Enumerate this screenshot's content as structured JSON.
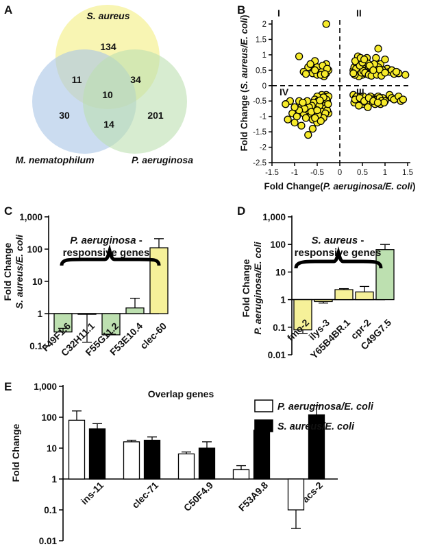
{
  "figure": {
    "panel_labels": {
      "A": "A",
      "B": "B",
      "C": "C",
      "D": "D",
      "E": "E"
    },
    "colors": {
      "yellow": "#f6f199",
      "green": "#bde0b0",
      "blue": "#a9c4e6",
      "scatter_fill": "#f7eb2a",
      "black": "#000000",
      "white": "#ffffff"
    }
  },
  "chart_data": [
    {
      "panel": "A",
      "type": "venn",
      "sets": [
        "S. aureus",
        "M. nematophilum",
        "P. aeruginosa"
      ],
      "regions": {
        "aureus_only": "134",
        "nemato_only": "30",
        "pseudo_only": "201",
        "aureus_nemato": "11",
        "aureus_pseudo": "34",
        "nemato_pseudo": "14",
        "all_three": "10"
      }
    },
    {
      "panel": "B",
      "type": "scatter",
      "xlabel_prefix": "Fold Change(",
      "xlabel_italic": "P. aeruginosa/E. coli",
      "xlabel_suffix": ")",
      "ylabel_prefix": "Fold Change (",
      "ylabel_italic": "S. aureus/E. coli",
      "ylabel_suffix": ")",
      "xlim": [
        -1.5,
        1.5
      ],
      "ylim": [
        -2.5,
        2
      ],
      "xticks": [
        "-1.5",
        "-1",
        "-0.5",
        "0",
        "0.5",
        "1",
        "1.5"
      ],
      "yticks": [
        "-2.5",
        "-2",
        "-1.5",
        "-1",
        "-0.5",
        "0",
        "0.5",
        "1",
        "1.5",
        "2"
      ],
      "quadrants": {
        "I": "I",
        "II": "II",
        "III": "III",
        "IV": "IV"
      },
      "points": [
        [
          -0.3,
          2.0
        ],
        [
          -0.9,
          0.95
        ],
        [
          -0.55,
          0.8
        ],
        [
          -0.3,
          0.7
        ],
        [
          -0.7,
          0.6
        ],
        [
          -0.6,
          0.4
        ],
        [
          -0.5,
          0.35
        ],
        [
          -0.45,
          0.55
        ],
        [
          -0.4,
          0.45
        ],
        [
          -0.35,
          0.3
        ],
        [
          -0.3,
          0.4
        ],
        [
          -0.25,
          0.5
        ],
        [
          -0.8,
          0.45
        ],
        [
          -0.65,
          0.7
        ],
        [
          -0.5,
          0.6
        ],
        [
          -0.38,
          0.65
        ],
        [
          -0.42,
          0.35
        ],
        [
          -0.28,
          0.55
        ],
        [
          -0.33,
          0.38
        ],
        [
          -0.55,
          0.5
        ],
        [
          -0.75,
          0.38
        ],
        [
          0.4,
          0.95
        ],
        [
          0.6,
          0.9
        ],
        [
          0.8,
          0.9
        ],
        [
          0.85,
          1.2
        ],
        [
          0.9,
          0.7
        ],
        [
          1.0,
          0.85
        ],
        [
          1.05,
          0.55
        ],
        [
          1.3,
          0.4
        ],
        [
          1.45,
          0.35
        ],
        [
          0.3,
          0.5
        ],
        [
          0.35,
          0.45
        ],
        [
          0.4,
          0.4
        ],
        [
          0.45,
          0.55
        ],
        [
          0.5,
          0.35
        ],
        [
          0.55,
          0.6
        ],
        [
          0.6,
          0.5
        ],
        [
          0.65,
          0.45
        ],
        [
          0.7,
          0.55
        ],
        [
          0.75,
          0.4
        ],
        [
          0.8,
          0.5
        ],
        [
          0.85,
          0.6
        ],
        [
          0.9,
          0.4
        ],
        [
          0.95,
          0.5
        ],
        [
          1.1,
          0.45
        ],
        [
          1.15,
          0.5
        ],
        [
          1.2,
          0.38
        ],
        [
          0.32,
          0.6
        ],
        [
          0.38,
          0.7
        ],
        [
          0.42,
          0.3
        ],
        [
          0.48,
          0.42
        ],
        [
          0.52,
          0.48
        ],
        [
          0.58,
          0.38
        ],
        [
          0.62,
          0.72
        ],
        [
          0.68,
          0.4
        ],
        [
          0.72,
          0.62
        ],
        [
          0.78,
          0.45
        ],
        [
          0.33,
          0.35
        ],
        [
          0.36,
          0.55
        ],
        [
          0.44,
          0.65
        ],
        [
          0.5,
          0.75
        ],
        [
          0.56,
          0.42
        ],
        [
          0.64,
          0.35
        ],
        [
          0.7,
          0.32
        ],
        [
          0.76,
          0.7
        ],
        [
          0.82,
          0.35
        ],
        [
          0.88,
          0.52
        ],
        [
          0.92,
          0.32
        ],
        [
          1.0,
          0.42
        ],
        [
          1.25,
          0.45
        ],
        [
          0.3,
          0.4
        ],
        [
          0.34,
          0.8
        ],
        [
          0.46,
          0.9
        ],
        [
          0.54,
          0.85
        ],
        [
          0.66,
          0.65
        ],
        [
          0.74,
          0.5
        ],
        [
          -1.1,
          -0.5
        ],
        [
          -0.9,
          -0.5
        ],
        [
          -0.85,
          -0.7
        ],
        [
          -0.8,
          -0.9
        ],
        [
          -0.75,
          -0.6
        ],
        [
          -0.7,
          -0.8
        ],
        [
          -0.65,
          -1.0
        ],
        [
          -0.6,
          -1.1
        ],
        [
          -0.55,
          -0.9
        ],
        [
          -0.5,
          -0.7
        ],
        [
          -0.45,
          -0.8
        ],
        [
          -0.4,
          -0.6
        ],
        [
          -0.35,
          -0.5
        ],
        [
          -0.3,
          -0.7
        ],
        [
          -0.25,
          -0.9
        ],
        [
          -0.5,
          -1.2
        ],
        [
          -0.6,
          -1.4
        ],
        [
          -0.7,
          -1.6
        ],
        [
          -0.85,
          -1.3
        ],
        [
          -1.0,
          -1.2
        ],
        [
          -1.05,
          -0.9
        ],
        [
          -1.15,
          -1.1
        ],
        [
          -0.95,
          -1.0
        ],
        [
          -0.4,
          -1.0
        ],
        [
          -0.3,
          -0.3
        ],
        [
          -0.35,
          -0.35
        ],
        [
          -0.4,
          -0.3
        ],
        [
          -0.45,
          -0.4
        ],
        [
          -0.5,
          -0.35
        ],
        [
          -0.55,
          -0.45
        ],
        [
          -0.3,
          -0.4
        ],
        [
          -0.25,
          -0.35
        ],
        [
          -0.28,
          -0.5
        ],
        [
          -0.33,
          -0.55
        ],
        [
          -0.38,
          -0.45
        ],
        [
          -0.42,
          -0.55
        ],
        [
          -0.48,
          -0.5
        ],
        [
          -0.52,
          -0.6
        ],
        [
          -0.58,
          -0.55
        ],
        [
          -0.62,
          -0.65
        ],
        [
          -0.68,
          -0.7
        ],
        [
          -0.72,
          -0.5
        ],
        [
          -0.78,
          -0.75
        ],
        [
          -0.82,
          -0.55
        ],
        [
          -0.3,
          -0.6
        ],
        [
          -0.35,
          -0.75
        ],
        [
          -0.4,
          -0.85
        ],
        [
          -0.45,
          -0.65
        ],
        [
          -0.28,
          -0.8
        ],
        [
          -0.32,
          -0.9
        ],
        [
          -0.36,
          -1.05
        ],
        [
          -0.42,
          -1.15
        ],
        [
          -0.48,
          -0.95
        ],
        [
          -0.55,
          -1.05
        ],
        [
          -0.63,
          -0.85
        ],
        [
          -0.75,
          -1.05
        ],
        [
          -0.9,
          -0.8
        ],
        [
          -1.0,
          -0.7
        ],
        [
          -1.2,
          -0.6
        ],
        [
          -0.3,
          -0.45
        ],
        [
          -0.36,
          -0.38
        ],
        [
          -0.44,
          -0.48
        ],
        [
          -0.26,
          -0.6
        ],
        [
          -0.5,
          -0.8
        ],
        [
          0.3,
          -0.3
        ],
        [
          0.35,
          -0.4
        ],
        [
          0.4,
          -0.5
        ],
        [
          0.45,
          -0.35
        ],
        [
          0.5,
          -0.6
        ],
        [
          0.55,
          -0.4
        ],
        [
          0.6,
          -0.5
        ],
        [
          0.65,
          -0.45
        ],
        [
          0.7,
          -0.55
        ],
        [
          0.75,
          -0.4
        ],
        [
          0.8,
          -0.5
        ],
        [
          0.85,
          -0.35
        ],
        [
          0.9,
          -0.6
        ],
        [
          0.95,
          -0.4
        ],
        [
          1.0,
          -0.5
        ],
        [
          1.1,
          -0.3
        ],
        [
          1.15,
          -0.4
        ],
        [
          1.2,
          -0.45
        ],
        [
          1.3,
          -0.35
        ],
        [
          1.35,
          -0.5
        ],
        [
          1.4,
          -0.45
        ],
        [
          0.32,
          -0.55
        ],
        [
          0.38,
          -0.35
        ],
        [
          0.42,
          -0.65
        ],
        [
          0.48,
          -0.45
        ],
        [
          0.52,
          -0.35
        ],
        [
          0.58,
          -0.55
        ],
        [
          0.62,
          -0.7
        ],
        [
          0.68,
          -0.35
        ],
        [
          0.72,
          -0.45
        ],
        [
          0.78,
          -0.6
        ],
        [
          0.82,
          -0.45
        ],
        [
          0.88,
          -0.4
        ],
        [
          0.92,
          -0.5
        ],
        [
          0.98,
          -0.55
        ],
        [
          0.34,
          -0.45
        ],
        [
          0.44,
          -0.4
        ],
        [
          0.54,
          -0.5
        ],
        [
          0.64,
          -0.4
        ],
        [
          0.74,
          -0.5
        ],
        [
          0.84,
          -0.55
        ]
      ]
    },
    {
      "panel": "C",
      "type": "bar",
      "scale": "log",
      "ylim": [
        0.1,
        1000
      ],
      "yticks": [
        "0.1",
        "1",
        "10",
        "100",
        "1,000"
      ],
      "ylabel_line1": "Fold Change",
      "ylabel_line2": "S. aureus/E. coli",
      "bracket_label_italic": "P. aeruginosa",
      "bracket_label_suffix": " -",
      "bracket_label_line2": "responsive genes",
      "categories": [
        "F49F1.6",
        "C32H11.1",
        "F55G11.2",
        "F53E10.4",
        "clec-60"
      ],
      "values": [
        0.27,
        0.95,
        0.22,
        1.5,
        110
      ],
      "errors": [
        0.35,
        0.13,
        0.23,
        3.0,
        210
      ],
      "bar_colors": [
        "green",
        "green",
        "green",
        "green",
        "yellow"
      ]
    },
    {
      "panel": "D",
      "type": "bar",
      "scale": "log",
      "ylim": [
        0.01,
        1000
      ],
      "yticks": [
        "0.01",
        "0.1",
        "1",
        "10",
        "100",
        "1,000"
      ],
      "ylabel_line1": "Fold Change",
      "ylabel_line2": "P. aeruginosa/E. coli",
      "bracket_label_italic": "S. aureus",
      "bracket_label_suffix": " -",
      "bracket_label_line2": "responsive genes",
      "categories": [
        "fmo-2",
        "ilys-3",
        "Y65B4BR.1",
        "cpr-2",
        "C49G7.5"
      ],
      "values": [
        0.08,
        0.85,
        2.3,
        1.9,
        65
      ],
      "errors": [
        0.06,
        0.75,
        2.5,
        3.0,
        100
      ],
      "bar_colors": [
        "yellow",
        "yellow",
        "yellow",
        "yellow",
        "green"
      ]
    },
    {
      "panel": "E",
      "type": "bar",
      "scale": "log",
      "title": "Overlap genes",
      "ylim": [
        0.01,
        1000
      ],
      "yticks": [
        "0.01",
        "0.1",
        "1",
        "10",
        "100",
        "1,000"
      ],
      "ylabel": "Fold Change",
      "categories": [
        "ins-11",
        "clec-71",
        "C50F4.9",
        "F53A9.8",
        "acs-2"
      ],
      "series": [
        {
          "name": "P. aeruginosa/E. coli",
          "color": "white",
          "values": [
            80,
            16,
            6.5,
            2.0,
            0.1
          ],
          "errors": [
            160,
            18,
            7.5,
            2.7,
            0.025
          ]
        },
        {
          "name": "S. aureus/E. coli",
          "color": "black",
          "values": [
            42,
            18,
            10,
            38,
            120
          ],
          "errors": [
            62,
            23,
            16,
            55,
            240
          ]
        }
      ]
    }
  ]
}
